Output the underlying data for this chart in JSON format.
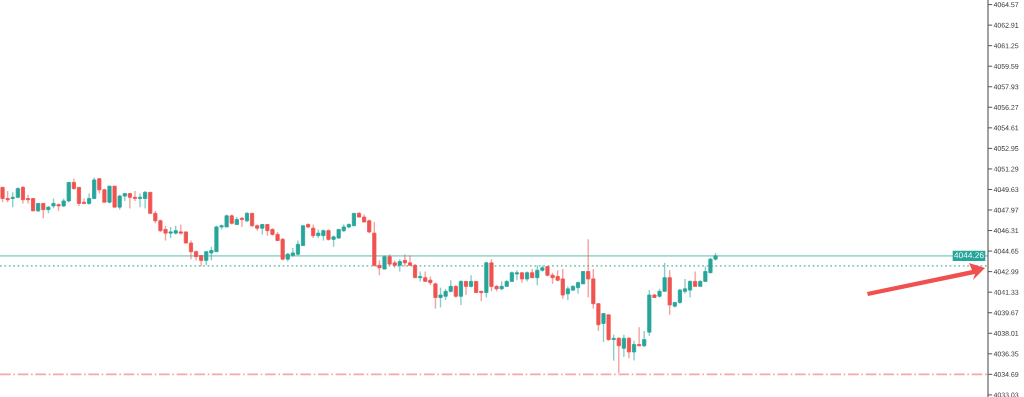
{
  "chart_data": {
    "type": "candlestick",
    "categories": [
      null,
      null,
      null,
      null,
      null,
      null,
      null,
      null,
      null,
      null,
      null,
      null,
      null,
      null,
      null,
      null,
      null,
      null,
      null,
      null,
      null,
      null,
      null,
      null,
      null,
      null,
      null,
      null,
      null,
      null,
      null,
      null,
      null,
      null,
      null,
      null,
      null,
      null,
      null,
      null,
      null,
      null,
      null,
      null,
      null,
      null,
      null,
      null,
      null,
      null,
      null,
      null,
      null,
      null,
      null,
      null,
      null,
      null,
      null,
      null,
      null,
      null,
      null,
      null,
      null,
      null,
      null,
      null,
      null,
      null,
      null,
      null,
      null,
      null,
      null,
      null,
      null,
      null,
      null,
      null,
      null,
      null,
      null,
      null,
      null,
      null,
      null,
      null,
      null,
      null,
      null,
      null,
      null,
      null,
      null,
      null,
      null,
      null,
      null,
      null,
      null,
      null,
      null,
      null,
      null,
      null,
      null,
      null,
      null,
      null,
      null,
      null,
      null,
      null,
      null,
      null,
      null,
      null,
      null,
      null,
      null,
      null,
      null,
      null,
      null,
      null,
      null,
      null,
      null,
      null,
      null,
      null,
      null,
      null,
      null,
      null,
      null,
      null,
      null,
      null,
      null,
      null,
      null,
      null,
      null,
      null,
      null,
      null,
      null,
      null,
      null,
      null,
      null,
      null,
      null,
      null,
      null,
      null,
      null,
      null,
      null,
      null,
      null,
      null,
      null,
      null,
      null,
      null,
      null,
      null,
      null,
      null,
      null,
      null,
      null,
      null,
      null,
      null,
      null,
      null,
      null,
      null,
      null,
      null,
      null,
      null,
      null,
      null,
      null,
      null,
      null,
      null,
      null,
      null
    ],
    "ohlc": [
      [
        4049.8,
        4049.8,
        4048.6,
        4048.9
      ],
      [
        4048.9,
        4049.5,
        4048.6,
        4048.8
      ],
      [
        4048.9,
        4049.4,
        4048.2,
        4049.0
      ],
      [
        4049.0,
        4049.8,
        4048.9,
        4049.7
      ],
      [
        4049.8,
        4049.9,
        4048.5,
        4048.8
      ],
      [
        4048.9,
        4049.2,
        4048.5,
        4048.8
      ],
      [
        4048.9,
        4048.9,
        4047.9,
        4047.9
      ],
      [
        4047.9,
        4048.5,
        4047.8,
        4048.5
      ],
      [
        4048.5,
        4048.5,
        4047.3,
        4048.0
      ],
      [
        4048.0,
        4048.3,
        4047.7,
        4048.2
      ],
      [
        4048.3,
        4048.9,
        4048.1,
        4048.5
      ],
      [
        4048.4,
        4048.5,
        4047.9,
        4048.3
      ],
      [
        4048.3,
        4048.9,
        4048.2,
        4048.7
      ],
      [
        4048.7,
        4050.2,
        4048.6,
        4050.2
      ],
      [
        4050.2,
        4050.5,
        4049.6,
        4049.7
      ],
      [
        4049.8,
        4049.8,
        4048.3,
        4048.5
      ],
      [
        4048.6,
        4048.9,
        4048.5,
        4048.5
      ],
      [
        4048.5,
        4049.3,
        4048.4,
        4048.9
      ],
      [
        4048.9,
        4050.6,
        4048.9,
        4050.4
      ],
      [
        4050.5,
        4050.5,
        4049.3,
        4049.6
      ],
      [
        4049.6,
        4049.7,
        4048.6,
        4048.6
      ],
      [
        4048.6,
        4049.9,
        4048.5,
        4049.9
      ],
      [
        4049.9,
        4049.9,
        4048.2,
        4048.2
      ],
      [
        4048.2,
        4049.2,
        4048.0,
        4049.1
      ],
      [
        4049.1,
        4049.3,
        4048.7,
        4049.3
      ],
      [
        4049.3,
        4049.3,
        4048.1,
        4049.0
      ],
      [
        4049.0,
        4049.5,
        4048.7,
        4048.9
      ],
      [
        4048.9,
        4049.3,
        4048.2,
        4049.0
      ],
      [
        4048.9,
        4049.5,
        4048.1,
        4049.4
      ],
      [
        4049.4,
        4049.4,
        4047.7,
        4047.7
      ],
      [
        4047.7,
        4047.9,
        4046.9,
        4047.1
      ],
      [
        4047.1,
        4047.2,
        4046.2,
        4046.3
      ],
      [
        4046.4,
        4046.7,
        4045.5,
        4046.1
      ],
      [
        4046.1,
        4046.6,
        4045.7,
        4046.2
      ],
      [
        4046.1,
        4046.7,
        4046.0,
        4046.3
      ],
      [
        4046.2,
        4046.8,
        4046.0,
        4046.1
      ],
      [
        4046.2,
        4046.2,
        4045.3,
        4045.3
      ],
      [
        4045.3,
        4045.5,
        4044.0,
        4044.6
      ],
      [
        4044.6,
        4044.7,
        4043.9,
        4044.2
      ],
      [
        4044.3,
        4044.3,
        4043.4,
        4043.9
      ],
      [
        4043.9,
        4044.6,
        4043.5,
        4044.6
      ],
      [
        4044.5,
        4045.0,
        4043.9,
        4044.7
      ],
      [
        4044.6,
        4046.7,
        4044.6,
        4046.6
      ],
      [
        4046.6,
        4046.8,
        4046.4,
        4046.7
      ],
      [
        4046.6,
        4047.6,
        4046.6,
        4047.5
      ],
      [
        4047.5,
        4047.6,
        4046.8,
        4046.9
      ],
      [
        4046.8,
        4047.4,
        4046.8,
        4047.2
      ],
      [
        4047.3,
        4047.4,
        4046.6,
        4047.2
      ],
      [
        4047.1,
        4047.8,
        4047.0,
        4047.7
      ],
      [
        4047.7,
        4047.7,
        4046.6,
        4046.7
      ],
      [
        4046.7,
        4046.8,
        4046.3,
        4046.5
      ],
      [
        4046.5,
        4046.8,
        4046.0,
        4046.8
      ],
      [
        4046.8,
        4046.8,
        4045.9,
        4046.3
      ],
      [
        4046.4,
        4046.5,
        4045.9,
        4046.0
      ],
      [
        4046.0,
        4046.2,
        4045.5,
        4045.5
      ],
      [
        4045.6,
        4045.7,
        4043.9,
        4044.0
      ],
      [
        4044.0,
        4044.5,
        4043.8,
        4044.4
      ],
      [
        4044.3,
        4044.9,
        4044.2,
        4044.5
      ],
      [
        4044.4,
        4045.5,
        4044.3,
        4045.2
      ],
      [
        4045.1,
        4046.7,
        4045.1,
        4046.7
      ],
      [
        4046.8,
        4046.9,
        4046.5,
        4046.6
      ],
      [
        4046.5,
        4046.8,
        4045.7,
        4045.9
      ],
      [
        4045.9,
        4046.4,
        4045.7,
        4046.1
      ],
      [
        4045.9,
        4046.4,
        4045.5,
        4046.3
      ],
      [
        4046.3,
        4046.4,
        4045.5,
        4045.6
      ],
      [
        4045.6,
        4045.9,
        4045.0,
        4045.8
      ],
      [
        4045.7,
        4046.4,
        4045.7,
        4046.4
      ],
      [
        4046.3,
        4046.8,
        4046.2,
        4046.6
      ],
      [
        4046.6,
        4046.9,
        4046.5,
        4046.8
      ],
      [
        4046.7,
        4047.7,
        4046.7,
        4047.7
      ],
      [
        4047.7,
        4047.8,
        4047.4,
        4047.4
      ],
      [
        4047.4,
        4047.6,
        4047.0,
        4047.0
      ],
      [
        4047.1,
        4047.2,
        4046.1,
        4046.2
      ],
      [
        4046.1,
        4047.0,
        4043.4,
        4043.5
      ],
      [
        4043.5,
        4043.9,
        4042.7,
        4043.3
      ],
      [
        4043.2,
        4044.3,
        4043.2,
        4044.2
      ],
      [
        4044.2,
        4044.4,
        4043.5,
        4043.6
      ],
      [
        4043.7,
        4043.9,
        4043.3,
        4043.5
      ],
      [
        4043.5,
        4044.0,
        4043.0,
        4043.8
      ],
      [
        4043.9,
        4044.4,
        4043.4,
        4043.7
      ],
      [
        4043.7,
        4044.3,
        4043.5,
        4043.5
      ],
      [
        4043.5,
        4043.6,
        4042.5,
        4042.5
      ],
      [
        4042.5,
        4043.0,
        4042.2,
        4042.6
      ],
      [
        4042.5,
        4043.0,
        4042.2,
        4042.2
      ],
      [
        4042.3,
        4042.6,
        4041.9,
        4042.1
      ],
      [
        4042.0,
        4042.1,
        4040.0,
        4040.9
      ],
      [
        4040.9,
        4041.7,
        4040.1,
        4041.1
      ],
      [
        4041.0,
        4041.6,
        4040.7,
        4041.4
      ],
      [
        4041.4,
        4042.3,
        4041.3,
        4041.8
      ],
      [
        4041.8,
        4041.9,
        4040.9,
        4041.0
      ],
      [
        4041.0,
        4042.3,
        4040.3,
        4042.2
      ],
      [
        4042.2,
        4042.2,
        4041.1,
        4041.8
      ],
      [
        4041.8,
        4042.7,
        4041.7,
        4042.2
      ],
      [
        4042.2,
        4042.2,
        4041.3,
        4041.3
      ],
      [
        4041.4,
        4041.4,
        4040.6,
        4041.3
      ],
      [
        4041.3,
        4043.8,
        4040.9,
        4043.7
      ],
      [
        4043.7,
        4044.0,
        4041.4,
        4041.8
      ],
      [
        4041.8,
        4041.9,
        4041.4,
        4041.6
      ],
      [
        4041.6,
        4042.2,
        4041.5,
        4041.8
      ],
      [
        4041.8,
        4042.3,
        4041.8,
        4042.2
      ],
      [
        4042.2,
        4043.0,
        4042.2,
        4042.9
      ],
      [
        4042.8,
        4043.1,
        4042.3,
        4042.9
      ],
      [
        4042.9,
        4042.9,
        4042.1,
        4042.4
      ],
      [
        4042.4,
        4043.0,
        4042.2,
        4042.9
      ],
      [
        4042.9,
        4043.2,
        4042.5,
        4042.5
      ],
      [
        4042.5,
        4043.5,
        4041.9,
        4043.1
      ],
      [
        4043.1,
        4043.5,
        4043.0,
        4043.3
      ],
      [
        4043.4,
        4043.4,
        4042.6,
        4042.7
      ],
      [
        4042.7,
        4042.9,
        4042.0,
        4042.5
      ],
      [
        4042.6,
        4043.1,
        4042.2,
        4042.3
      ],
      [
        4042.4,
        4043.2,
        4040.8,
        4041.1
      ],
      [
        4041.2,
        4041.8,
        4040.7,
        4041.6
      ],
      [
        4041.5,
        4041.9,
        4041.4,
        4041.8
      ],
      [
        4041.7,
        4042.2,
        4041.2,
        4042.1
      ],
      [
        4042.0,
        4043.0,
        4042.0,
        4043.0
      ],
      [
        4043.0,
        4045.6,
        4040.9,
        4042.4
      ],
      [
        4042.4,
        4043.2,
        4040.0,
        4040.4
      ],
      [
        4040.4,
        4040.4,
        4038.2,
        4038.7
      ],
      [
        4038.8,
        4039.6,
        4037.3,
        4039.6
      ],
      [
        4039.5,
        4039.5,
        4037.4,
        4037.5
      ],
      [
        4037.5,
        4037.9,
        4035.8,
        4037.6
      ],
      [
        4037.6,
        4037.7,
        4034.8,
        4037.0
      ],
      [
        4036.8,
        4037.9,
        4036.1,
        4037.6
      ],
      [
        4037.6,
        4037.7,
        4036.0,
        4036.5
      ],
      [
        4036.5,
        4037.4,
        4035.8,
        4037.1
      ],
      [
        4037.1,
        4038.5,
        4037.0,
        4037.0
      ],
      [
        4037.0,
        4038.2,
        4036.9,
        4037.5
      ],
      [
        4038.1,
        4041.5,
        4037.8,
        4041.1
      ],
      [
        4041.1,
        4041.2,
        4040.9,
        4040.9
      ],
      [
        4041.0,
        4041.6,
        4040.9,
        4041.4
      ],
      [
        4041.4,
        4043.7,
        4041.4,
        4042.5
      ],
      [
        4042.5,
        4043.1,
        4039.5,
        4040.3
      ],
      [
        4040.2,
        4040.5,
        4040.1,
        4040.5
      ],
      [
        4040.5,
        4041.6,
        4040.4,
        4041.5
      ],
      [
        4041.4,
        4042.4,
        4041.2,
        4041.6
      ],
      [
        4041.5,
        4042.3,
        4040.9,
        4042.2
      ],
      [
        4042.2,
        4043.0,
        4041.8,
        4041.8
      ],
      [
        4041.8,
        4042.3,
        4041.8,
        4042.2
      ],
      [
        4042.2,
        4043.4,
        4042.2,
        4043.0
      ],
      [
        4042.9,
        4044.1,
        4042.9,
        4044.0
      ],
      [
        4044.0,
        4044.5,
        4043.9,
        4044.26
      ],
      null,
      null,
      null,
      null,
      null,
      null,
      null,
      null,
      null,
      null,
      null,
      null,
      null,
      null,
      null,
      null,
      null,
      null,
      null,
      null,
      null,
      null,
      null,
      null,
      null,
      null,
      null,
      null,
      null,
      null,
      null,
      null,
      null,
      null,
      null,
      null,
      null,
      null,
      null,
      null,
      null,
      null,
      null,
      null,
      null,
      null,
      null,
      null,
      null,
      null,
      null,
      null,
      null
    ],
    "colors": [
      "#ef5350",
      "#ef5350",
      "#26a69a",
      "#26a69a",
      "#ef5350",
      "#ef5350",
      "#ef5350",
      "#26a69a",
      "#ef5350",
      "#26a69a",
      "#26a69a",
      "#ef5350",
      "#26a69a",
      "#26a69a",
      "#ef5350",
      "#ef5350",
      "#ef5350",
      "#26a69a",
      "#26a69a",
      "#ef5350",
      "#ef5350",
      "#26a69a",
      "#ef5350",
      "#26a69a",
      "#26a69a",
      "#ef5350",
      "#ef5350",
      "#26a69a",
      "#26a69a",
      "#ef5350",
      "#ef5350",
      "#ef5350",
      "#ef5350",
      "#26a69a",
      "#26a69a",
      "#ef5350",
      "#ef5350",
      "#ef5350",
      "#ef5350",
      "#ef5350",
      "#26a69a",
      "#26a69a",
      "#26a69a",
      "#26a69a",
      "#26a69a",
      "#ef5350",
      "#26a69a",
      "#ef5350",
      "#26a69a",
      "#ef5350",
      "#ef5350",
      "#26a69a",
      "#ef5350",
      "#ef5350",
      "#ef5350",
      "#ef5350",
      "#26a69a",
      "#26a69a",
      "#26a69a",
      "#26a69a",
      "#ef5350",
      "#ef5350",
      "#26a69a",
      "#26a69a",
      "#ef5350",
      "#26a69a",
      "#26a69a",
      "#26a69a",
      "#26a69a",
      "#26a69a",
      "#ef5350",
      "#ef5350",
      "#ef5350",
      "#ef5350",
      "#ef5350",
      "#26a69a",
      "#ef5350",
      "#ef5350",
      "#26a69a",
      "#ef5350",
      "#ef5350",
      "#ef5350",
      "#26a69a",
      "#ef5350",
      "#ef5350",
      "#ef5350",
      "#26a69a",
      "#26a69a",
      "#26a69a",
      "#ef5350",
      "#26a69a",
      "#ef5350",
      "#26a69a",
      "#ef5350",
      "#ef5350",
      "#26a69a",
      "#ef5350",
      "#ef5350",
      "#26a69a",
      "#26a69a",
      "#26a69a",
      "#26a69a",
      "#ef5350",
      "#26a69a",
      "#ef5350",
      "#26a69a",
      "#26a69a",
      "#ef5350",
      "#ef5350",
      "#ef5350",
      "#ef5350",
      "#26a69a",
      "#26a69a",
      "#26a69a",
      "#26a69a",
      "#ef5350",
      "#ef5350",
      "#ef5350",
      "#26a69a",
      "#ef5350",
      "#26a69a",
      "#ef5350",
      "#26a69a",
      "#ef5350",
      "#26a69a",
      "#ef5350",
      "#26a69a",
      "#26a69a",
      "#ef5350",
      "#26a69a",
      "#26a69a",
      "#ef5350",
      "#26a69a",
      "#26a69a",
      "#26a69a",
      "#26a69a",
      "#ef5350",
      "#26a69a",
      "#26a69a",
      "#26a69a",
      "#26a69a",
      null,
      null,
      null,
      null,
      null,
      null,
      null,
      null,
      null,
      null,
      null,
      null,
      null,
      null,
      null,
      null,
      null,
      null,
      null,
      null,
      null,
      null,
      null,
      null,
      null,
      null,
      null,
      null,
      null,
      null,
      null,
      null,
      null,
      null,
      null,
      null,
      null,
      null,
      null,
      null,
      null,
      null,
      null,
      null,
      null,
      null,
      null,
      null,
      null,
      null,
      null,
      null,
      null
    ],
    "ylim": [
      4032.86,
      4064.94
    ],
    "yticks": [
      4064.57,
      4062.91,
      4061.25,
      4059.59,
      4057.93,
      4056.27,
      4054.61,
      4052.95,
      4051.29,
      4049.63,
      4047.97,
      4046.31,
      4044.65,
      4042.99,
      4041.33,
      4039.67,
      4038.01,
      4036.35,
      4034.69,
      4033.03
    ],
    "tick_labels": "y",
    "grid": false,
    "legend": false,
    "ref_lines": [
      {
        "axis": "y",
        "value": 4044.26,
        "label": "4044.26",
        "color": "#9fd9d2",
        "line_style": "solid"
      },
      {
        "axis": "y",
        "value": 4043.45,
        "label": null,
        "color": "#7cc9c0",
        "line_style": "dotted"
      },
      {
        "axis": "y",
        "value": 4034.69,
        "label": null,
        "color": "#f5a9a6",
        "line_style": "dashdot"
      }
    ]
  }
}
